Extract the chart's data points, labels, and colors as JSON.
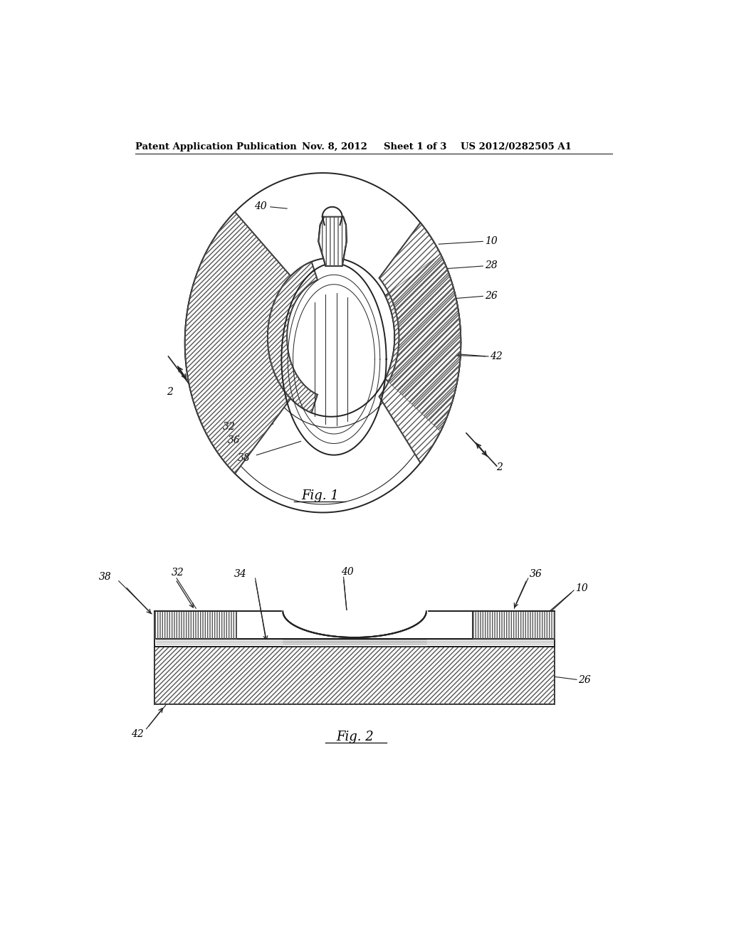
{
  "bg_color": "#ffffff",
  "header_text": "Patent Application Publication",
  "header_date": "Nov. 8, 2012",
  "header_sheet": "Sheet 1 of 3",
  "header_patent": "US 2012/0282505 A1",
  "line_color": "#222222",
  "hatch_color": "#333333"
}
